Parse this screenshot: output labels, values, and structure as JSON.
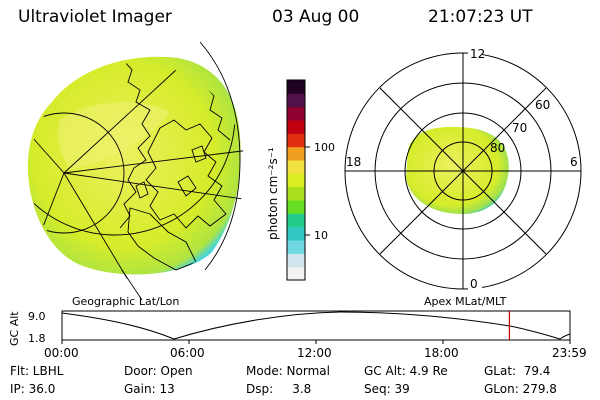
{
  "header": {
    "instrument": "Ultraviolet Imager",
    "date": "03 Aug 00",
    "time": "21:07:23 UT"
  },
  "colorbar": {
    "unit_label": "photon cm⁻²s⁻¹",
    "tick_high": "100",
    "tick_low": "10",
    "colors": [
      "#f2f2f2",
      "#d0e4ee",
      "#70d8e0",
      "#30c8c0",
      "#22cc88",
      "#66dd22",
      "#a8e020",
      "#d8ee22",
      "#f0e040",
      "#f0a020",
      "#e03010",
      "#c00010",
      "#900030",
      "#50104a",
      "#200020"
    ]
  },
  "polar_plot": {
    "labels": {
      "top": "12",
      "bottom": "0",
      "left": "18",
      "right": "6"
    },
    "rings": [
      "60",
      "70",
      "80"
    ]
  },
  "projection_labels": {
    "geo": "Geographic Lat/Lon",
    "apex": "Apex MLat/MLT"
  },
  "altitude_plot": {
    "ylabel": "GC Alt",
    "ymax": "9.0",
    "ymin": "1.8",
    "x_ticks": [
      "00:00",
      "06:00",
      "12:00",
      "18:00",
      "23:59"
    ],
    "marker_hours": 21.12
  },
  "info": {
    "flt": "Flt: LBHL",
    "ip": "IP: 36.0",
    "door": "Door: Open",
    "gain": "Gain: 13",
    "mode": "Mode: Normal",
    "dsp": "Dsp:     3.8",
    "gcalt": "GC Alt: 4.9 Re",
    "seq": "Seq: 39",
    "glat": "GLat:  79.4",
    "glon": "GLon: 279.8"
  },
  "colors": {
    "image_fill": "#d6ec2a",
    "image_edge": "#48d4d8",
    "marker": "#cc0000"
  }
}
